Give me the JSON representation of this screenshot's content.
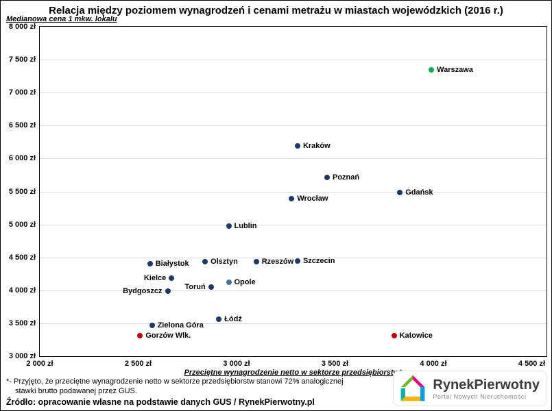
{
  "chart_data": {
    "type": "scatter",
    "title": "Relacja między poziomem wynagrodzeń i cenami metrażu w miastach wojewódzkich (2016 r.)",
    "xlabel": "Przeciętne wynagrodzenie netto w sektorze przedsiębiorstw*",
    "ylabel": "Medianowa cena 1 mkw. lokalu",
    "xlim": [
      2000,
      4575
    ],
    "ylim": [
      3000,
      8000
    ],
    "xticks": [
      2000,
      2500,
      3000,
      3500,
      4000,
      4500
    ],
    "yticks": [
      3000,
      3500,
      4000,
      4500,
      5000,
      5500,
      6000,
      6500,
      7000,
      7500,
      8000
    ],
    "tick_suffix": " zł",
    "grid": "horizontal-only",
    "legend": "none",
    "default_point_color": "#1F3864",
    "highlight_colors": {
      "max": "#00B050",
      "outliers": "#C00000",
      "opole": "#44729B"
    },
    "points": [
      {
        "name": "Warszawa",
        "x": 3990,
        "y": 7350,
        "color": "#00B050",
        "label_side": "right"
      },
      {
        "name": "Kraków",
        "x": 3310,
        "y": 6190,
        "color": "#1F3864",
        "label_side": "right"
      },
      {
        "name": "Poznań",
        "x": 3460,
        "y": 5710,
        "color": "#1F3864",
        "label_side": "right"
      },
      {
        "name": "Gdańsk",
        "x": 3830,
        "y": 5480,
        "color": "#1F3864",
        "label_side": "right"
      },
      {
        "name": "Wrocław",
        "x": 3280,
        "y": 5390,
        "color": "#1F3864",
        "label_side": "right"
      },
      {
        "name": "Lublin",
        "x": 2960,
        "y": 4970,
        "color": "#1F3864",
        "label_side": "right"
      },
      {
        "name": "Szczecin",
        "x": 3310,
        "y": 4450,
        "color": "#1F3864",
        "label_side": "right"
      },
      {
        "name": "Rzeszów",
        "x": 3100,
        "y": 4430,
        "color": "#1F3864",
        "label_side": "right"
      },
      {
        "name": "Olsztyn",
        "x": 2840,
        "y": 4430,
        "color": "#1F3864",
        "label_side": "right"
      },
      {
        "name": "Białystok",
        "x": 2560,
        "y": 4400,
        "color": "#1F3864",
        "label_side": "right"
      },
      {
        "name": "Kielce",
        "x": 2670,
        "y": 4180,
        "color": "#1F3864",
        "label_side": "left"
      },
      {
        "name": "Opole",
        "x": 2960,
        "y": 4120,
        "color": "#44729B",
        "label_side": "right"
      },
      {
        "name": "Toruń",
        "x": 2870,
        "y": 4050,
        "color": "#1F3864",
        "label_side": "left"
      },
      {
        "name": "Bydgoszcz",
        "x": 2650,
        "y": 3990,
        "color": "#1F3864",
        "label_side": "left"
      },
      {
        "name": "Łódź",
        "x": 2910,
        "y": 3560,
        "color": "#1F3864",
        "label_side": "right"
      },
      {
        "name": "Zielona Góra",
        "x": 2570,
        "y": 3470,
        "color": "#1F3864",
        "label_side": "right"
      },
      {
        "name": "Gorzów Wlk.",
        "x": 2510,
        "y": 3310,
        "color": "#C00000",
        "label_side": "right"
      },
      {
        "name": "Katowice",
        "x": 3800,
        "y": 3310,
        "color": "#C00000",
        "label_side": "right"
      }
    ]
  },
  "footnotes": {
    "line1": "*- Przyjęto, że przeciętne wynagrodzenie netto w sektorze przedsiębiorstw stanowi 72% analogicznej",
    "line2": "stawki brutto podawanej przez GUS.",
    "source": "Źródło: opracowanie własne na podstawie danych GUS / RynekPierwotny.pl"
  },
  "logo": {
    "name": "RynekPierwotny",
    "tagline": "Portal Nowych Nieruchomości"
  }
}
